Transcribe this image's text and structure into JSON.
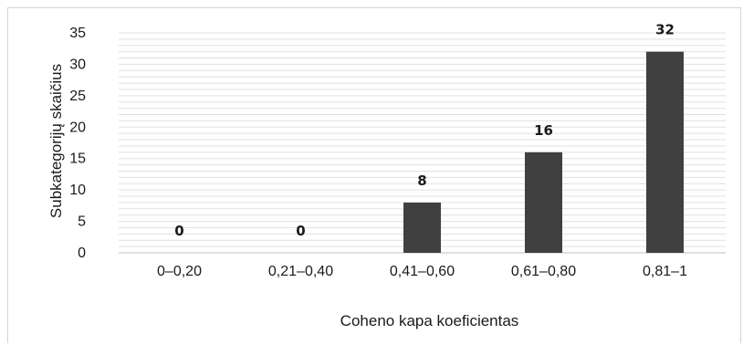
{
  "chart_data": {
    "type": "bar",
    "title": "",
    "xlabel": "Coheno kapa koeficientas",
    "ylabel": "Subkategorijų skaičius",
    "categories": [
      "0–0,20",
      "0,21–0,40",
      "0,41–0,60",
      "0,61–0,80",
      "0,81–1"
    ],
    "values": [
      0,
      0,
      8,
      16,
      32
    ],
    "data_labels": [
      "0",
      "0",
      "8",
      "16",
      "32"
    ],
    "ylim": [
      0,
      35
    ],
    "yticks": [
      0,
      5,
      10,
      15,
      20,
      25,
      30,
      35
    ],
    "grid": true,
    "legend": "none",
    "bar_color": "#404040",
    "grid_color": "#e0e0e0"
  }
}
